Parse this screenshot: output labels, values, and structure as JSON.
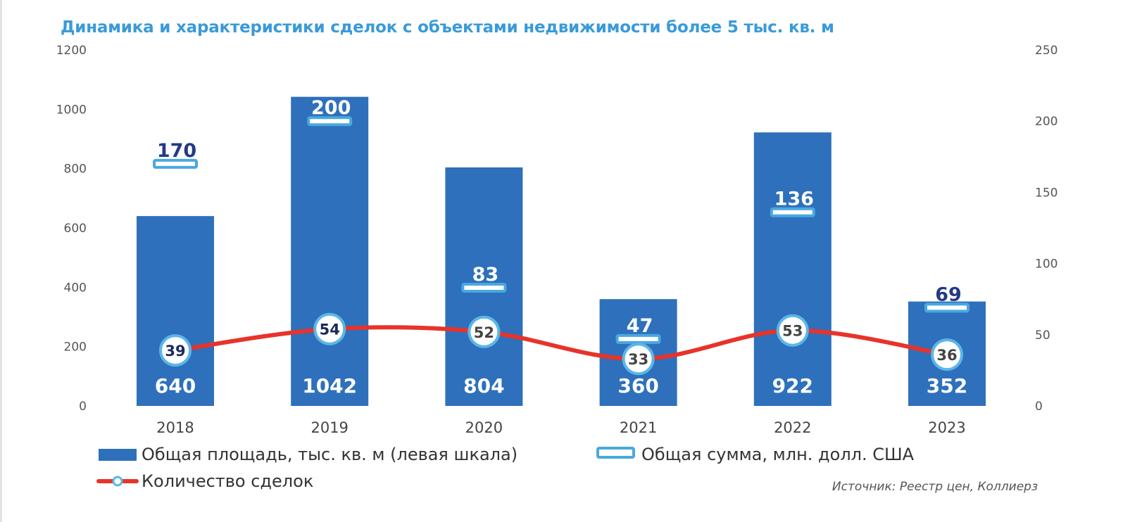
{
  "title": "Динамика и характеристики сделок с объектами недвижимости более 5 тыс. кв. м",
  "source": "Источник: Реестр цен, Коллиерз",
  "colors": {
    "bar": "#2e70bb",
    "sum_marker": "#49a8e0",
    "count_line": "#e8332a",
    "count_marker_ring": "#5bb6e8",
    "title": "#3a9ad9",
    "sum_label_dark": "#243a86",
    "count_label_dark": "#1c2a5c",
    "count_label_grey": "#444444"
  },
  "chart_data": {
    "type": "bar",
    "categories": [
      "2018",
      "2019",
      "2020",
      "2021",
      "2022",
      "2023"
    ],
    "y_left": {
      "min": 0,
      "max": 1200,
      "ticks": [
        "0",
        "200",
        "400",
        "600",
        "800",
        "1000",
        "1200"
      ]
    },
    "y_right": {
      "min": 0,
      "max": 250,
      "ticks": [
        "0",
        "50",
        "100",
        "150",
        "200",
        "250"
      ]
    },
    "series": [
      {
        "name": "Общая площадь, тыс. кв. м (левая шкала)",
        "type": "bar",
        "axis": "left",
        "values": [
          640,
          1042,
          804,
          360,
          922,
          352
        ],
        "labels": [
          "640",
          "1042",
          "804",
          "360",
          "922",
          "352"
        ]
      },
      {
        "name": "Общая сумма, млн. долл. США",
        "type": "marker",
        "axis": "right",
        "values": [
          170,
          200,
          83,
          47,
          136,
          69
        ],
        "labels": [
          "170",
          "200",
          "83",
          "47",
          "136",
          "69"
        ]
      },
      {
        "name": "Количество сделок",
        "type": "line",
        "axis": "right",
        "values": [
          39,
          54,
          52,
          33,
          53,
          36
        ],
        "labels": [
          "39",
          "54",
          "52",
          "33",
          "53",
          "36"
        ]
      }
    ],
    "legend_placement": "bottom",
    "grid": false
  }
}
